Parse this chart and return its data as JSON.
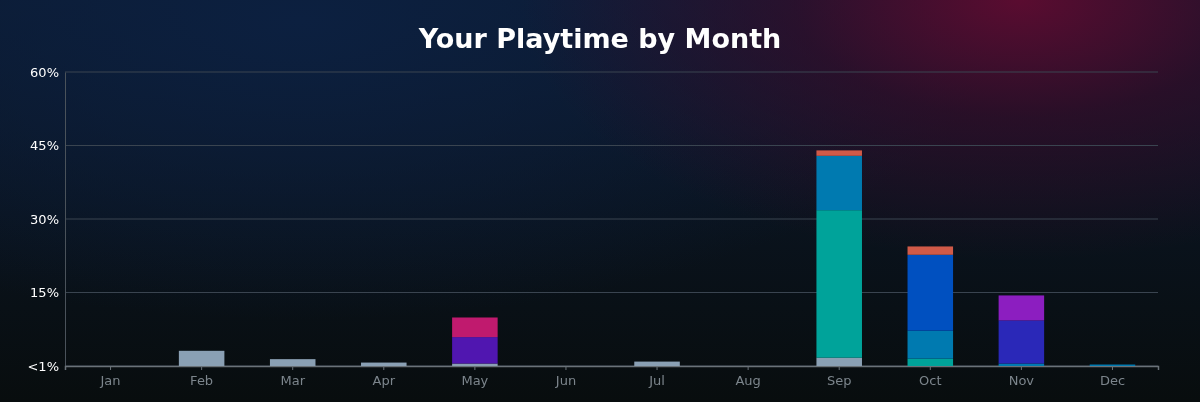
{
  "chart_data": {
    "type": "bar",
    "title": "Your Playtime by Month",
    "stacked": true,
    "grid": "y",
    "categories": [
      "Jan",
      "Feb",
      "Mar",
      "Apr",
      "May",
      "Jun",
      "Jul",
      "Aug",
      "Sep",
      "Oct",
      "Nov",
      "Dec"
    ],
    "ylim": [
      0,
      60
    ],
    "yticks": [
      {
        "value": 0,
        "label": "<1%"
      },
      {
        "value": 15,
        "label": "15%"
      },
      {
        "value": 30,
        "label": "30%"
      },
      {
        "value": 45,
        "label": "45%"
      },
      {
        "value": 60,
        "label": "60%"
      }
    ],
    "series": [
      {
        "color": "#8aa0b4",
        "values": [
          null,
          3.1,
          1.4,
          0.7,
          0.5,
          null,
          0.9,
          null,
          1.7,
          null,
          null,
          null
        ]
      },
      {
        "color": "#00a39a",
        "values": [
          null,
          null,
          null,
          null,
          null,
          null,
          null,
          null,
          30.1,
          1.5,
          null,
          null
        ]
      },
      {
        "color": "#007ab0",
        "values": [
          null,
          null,
          null,
          null,
          null,
          null,
          null,
          null,
          11.1,
          5.7,
          0.5,
          0.3
        ]
      },
      {
        "color": "#0050c0",
        "values": [
          null,
          null,
          null,
          null,
          null,
          null,
          null,
          null,
          null,
          15.5,
          null,
          null
        ]
      },
      {
        "color": "#2a28b8",
        "values": [
          null,
          null,
          null,
          null,
          null,
          null,
          null,
          null,
          null,
          null,
          8.8,
          null
        ]
      },
      {
        "color": "#5016b0",
        "values": [
          null,
          null,
          null,
          null,
          5.4,
          null,
          null,
          null,
          null,
          null,
          null,
          null
        ]
      },
      {
        "color": "#8c1ec0",
        "values": [
          null,
          null,
          null,
          null,
          null,
          null,
          null,
          null,
          null,
          null,
          5.1,
          null
        ]
      },
      {
        "color": "#c01a6e",
        "values": [
          null,
          null,
          null,
          null,
          4.0,
          null,
          null,
          null,
          null,
          null,
          null,
          null
        ]
      },
      {
        "color": "#d05a48",
        "values": [
          null,
          null,
          null,
          null,
          null,
          null,
          null,
          null,
          1.1,
          1.7,
          null,
          null
        ]
      }
    ]
  }
}
